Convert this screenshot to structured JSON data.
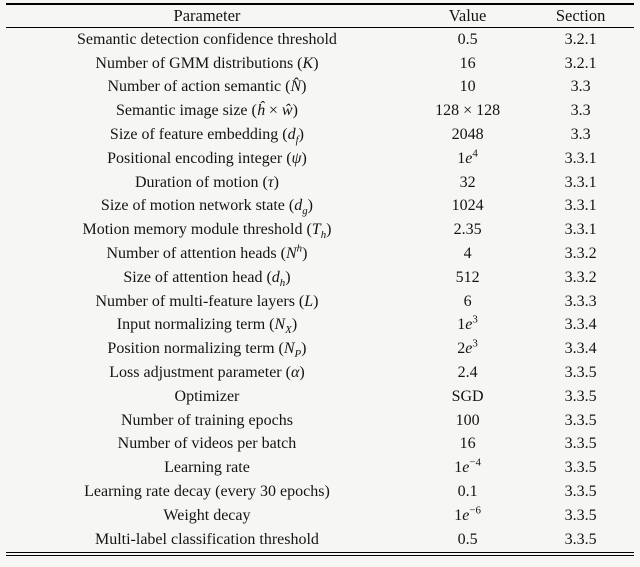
{
  "colors": {
    "background": "#f6f6f4",
    "text": "#141414",
    "rule": "#000000"
  },
  "table": {
    "headers": [
      "Parameter",
      "Value",
      "Section"
    ],
    "rows": [
      {
        "parameter": "Semantic detection confidence threshold",
        "value": "0.5",
        "section": "3.2.1"
      },
      {
        "parameter": "Number of GMM distributions (<i>K</i>)",
        "value": "16",
        "section": "3.2.1"
      },
      {
        "parameter": "Number of action semantic (<i>N̂</i>)",
        "value": "10",
        "section": "3.3"
      },
      {
        "parameter": "Semantic image size (<i>ĥ</i> × <i>ŵ</i>)",
        "value": "128 × 128",
        "section": "3.3"
      },
      {
        "parameter": "Size of feature embedding (<i>d<sub>f</sub></i>)",
        "value": "2048",
        "section": "3.3"
      },
      {
        "parameter": "Positional encoding integer (<i>ψ</i>)",
        "value": "1<i>e</i><sup>4</sup>",
        "section": "3.3.1"
      },
      {
        "parameter": "Duration of motion (<i>τ</i>)",
        "value": "32",
        "section": "3.3.1"
      },
      {
        "parameter": "Size of motion network state (<i>d<sub>g</sub></i>)",
        "value": "1024",
        "section": "3.3.1"
      },
      {
        "parameter": "Motion memory module threshold (<i>T<sub>h</sub></i>)",
        "value": "2.35",
        "section": "3.3.1"
      },
      {
        "parameter": "Number of attention heads (<i>N<sup>h</sup></i>)",
        "value": "4",
        "section": "3.3.2"
      },
      {
        "parameter": "Size of attention head (<i>d<sub>h</sub></i>)",
        "value": "512",
        "section": "3.3.2"
      },
      {
        "parameter": "Number of multi-feature layers (<i>L</i>)",
        "value": "6",
        "section": "3.3.3"
      },
      {
        "parameter": "Input normalizing term (<i>N<sub>X</sub></i>)",
        "value": "1<i>e</i><sup>3</sup>",
        "section": "3.3.4"
      },
      {
        "parameter": "Position normalizing term (<i>N<sub>P</sub></i>)",
        "value": "2<i>e</i><sup>3</sup>",
        "section": "3.3.4"
      },
      {
        "parameter": "Loss adjustment parameter (<i>α</i>)",
        "value": "2.4",
        "section": "3.3.5"
      },
      {
        "parameter": "Optimizer",
        "value": "SGD",
        "section": "3.3.5"
      },
      {
        "parameter": "Number of training epochs",
        "value": "100",
        "section": "3.3.5"
      },
      {
        "parameter": "Number of videos per batch",
        "value": "16",
        "section": "3.3.5"
      },
      {
        "parameter": "Learning rate",
        "value": "1<i>e</i><sup>−4</sup>",
        "section": "3.3.5"
      },
      {
        "parameter": "Learning rate decay (every 30 epochs)",
        "value": "0.1",
        "section": "3.3.5"
      },
      {
        "parameter": "Weight decay",
        "value": "1<i>e</i><sup>−6</sup>",
        "section": "3.3.5"
      },
      {
        "parameter": "Multi-label classification threshold",
        "value": "0.5",
        "section": "3.3.5"
      }
    ]
  }
}
